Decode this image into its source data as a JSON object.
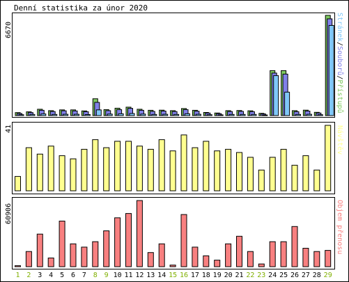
{
  "title": "Denní statistika za únor 2020",
  "colors": {
    "background": "#ffffff",
    "border": "#000000",
    "hits": "#7ec860",
    "files": "#8080e8",
    "pages": "#80c8f8",
    "visits": "#ffff90",
    "kbytes": "#f88080",
    "weekday_label": "#000000",
    "weekend_label": "#80b000"
  },
  "chart_data": [
    {
      "type": "bar",
      "panel": "top",
      "max_label": "6670",
      "ylim": [
        0,
        6670
      ],
      "legend": {
        "placement": "right-vertical",
        "parts": [
          "Stránek",
          "Souborů",
          "Přístupů"
        ],
        "separator": "/"
      },
      "categories": [
        "1",
        "2",
        "3",
        "4",
        "5",
        "6",
        "7",
        "8",
        "9",
        "10",
        "11",
        "12",
        "13",
        "14",
        "15",
        "16",
        "17",
        "18",
        "19",
        "20",
        "21",
        "22",
        "23",
        "24",
        "25",
        "26",
        "27",
        "28",
        "29"
      ],
      "series": [
        {
          "name": "Přístupů",
          "key": "hits",
          "values": [
            200,
            250,
            420,
            330,
            380,
            380,
            310,
            1120,
            400,
            490,
            560,
            420,
            350,
            360,
            330,
            470,
            350,
            210,
            170,
            330,
            340,
            320,
            150,
            2990,
            2990,
            330,
            360,
            220,
            6670
          ]
        },
        {
          "name": "Souborů",
          "key": "files",
          "values": [
            140,
            200,
            350,
            270,
            320,
            310,
            260,
            880,
            330,
            400,
            480,
            350,
            280,
            300,
            270,
            400,
            290,
            170,
            130,
            270,
            280,
            260,
            110,
            2830,
            2760,
            260,
            300,
            170,
            6440
          ]
        },
        {
          "name": "Stránek",
          "key": "pages",
          "values": [
            60,
            80,
            110,
            80,
            90,
            90,
            70,
            380,
            100,
            120,
            140,
            100,
            80,
            90,
            80,
            120,
            90,
            60,
            50,
            80,
            80,
            80,
            40,
            2660,
            1560,
            80,
            90,
            60,
            6000
          ]
        }
      ]
    },
    {
      "type": "bar",
      "panel": "middle",
      "max_label": "41",
      "ylim": [
        0,
        41
      ],
      "legend": {
        "placement": "right-vertical",
        "parts": [
          "Návštěv"
        ]
      },
      "categories": [
        "1",
        "2",
        "3",
        "4",
        "5",
        "6",
        "7",
        "8",
        "9",
        "10",
        "11",
        "12",
        "13",
        "14",
        "15",
        "16",
        "17",
        "18",
        "19",
        "20",
        "21",
        "22",
        "23",
        "24",
        "25",
        "26",
        "27",
        "28",
        "29"
      ],
      "series": [
        {
          "name": "Návštěv",
          "key": "visits",
          "values": [
            9,
            27,
            23,
            28,
            22,
            20,
            26,
            32,
            27,
            31,
            31,
            28,
            26,
            32,
            25,
            35,
            27,
            31,
            25,
            26,
            24,
            21,
            13,
            21,
            26,
            16,
            22,
            13,
            41
          ]
        }
      ]
    },
    {
      "type": "bar",
      "panel": "bottom",
      "max_label": "60906",
      "ylim": [
        0,
        60906
      ],
      "legend": {
        "placement": "right-vertical",
        "parts": [
          "Objem přenosu"
        ]
      },
      "categories": [
        "1",
        "2",
        "3",
        "4",
        "5",
        "6",
        "7",
        "8",
        "9",
        "10",
        "11",
        "12",
        "13",
        "14",
        "15",
        "16",
        "17",
        "18",
        "19",
        "20",
        "21",
        "22",
        "23",
        "24",
        "25",
        "26",
        "27",
        "28",
        "29"
      ],
      "series": [
        {
          "name": "Objem přenosu",
          "key": "kbytes",
          "values": [
            900,
            14000,
            30000,
            8000,
            42000,
            21000,
            18000,
            23000,
            33000,
            45000,
            49000,
            60906,
            13000,
            21000,
            1500,
            48000,
            18000,
            10000,
            6000,
            21000,
            28000,
            14000,
            2500,
            23000,
            23000,
            37000,
            17000,
            14000,
            15000
          ]
        }
      ]
    }
  ],
  "x_axis": {
    "days": [
      "1",
      "2",
      "3",
      "4",
      "5",
      "6",
      "7",
      "8",
      "9",
      "10",
      "11",
      "12",
      "13",
      "14",
      "15",
      "16",
      "17",
      "18",
      "19",
      "20",
      "21",
      "22",
      "23",
      "24",
      "25",
      "26",
      "27",
      "28",
      "29"
    ],
    "weekend_days": [
      "1",
      "2",
      "8",
      "9",
      "15",
      "16",
      "22",
      "23",
      "29"
    ]
  }
}
